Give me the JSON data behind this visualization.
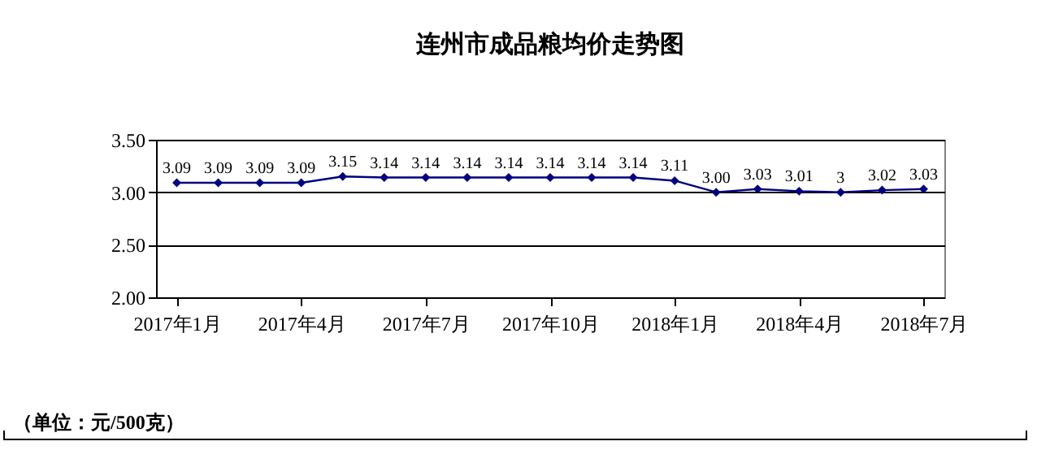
{
  "chart_data": {
    "type": "line",
    "title": "连州市成品粮均价走势图",
    "categories": [
      "2017年1月",
      null,
      null,
      "2017年4月",
      null,
      null,
      "2017年7月",
      null,
      null,
      "2017年10月",
      null,
      null,
      "2018年1月",
      null,
      null,
      "2018年4月",
      null,
      null,
      "2018年7月"
    ],
    "series": [
      {
        "color": "#000080",
        "values": [
          3.09,
          3.09,
          3.09,
          3.09,
          3.15,
          3.14,
          3.14,
          3.14,
          3.14,
          3.14,
          3.14,
          3.14,
          3.11,
          3.0,
          3.03,
          3.01,
          3.0,
          3.02,
          3.03
        ],
        "value_labels": [
          "3.09",
          "3.09",
          "3.09",
          "3.09",
          "3.15",
          "3.14",
          "3.14",
          "3.14",
          "3.14",
          "3.14",
          "3.14",
          "3.14",
          "3.11",
          "3.00",
          "3.03",
          "3.01",
          "3",
          "3.02",
          "3.03"
        ]
      }
    ],
    "ylim": [
      2.0,
      3.5
    ],
    "yticks": [
      {
        "value": 2.0,
        "label": "2.00"
      },
      {
        "value": 2.5,
        "label": "2.50"
      },
      {
        "value": 3.0,
        "label": "3.00"
      },
      {
        "value": 3.5,
        "label": "3.50"
      }
    ],
    "grid": "y",
    "marker": "diamond",
    "line_style": "solid",
    "legend": false,
    "annotations": [
      "（单位：元/500克）"
    ]
  }
}
